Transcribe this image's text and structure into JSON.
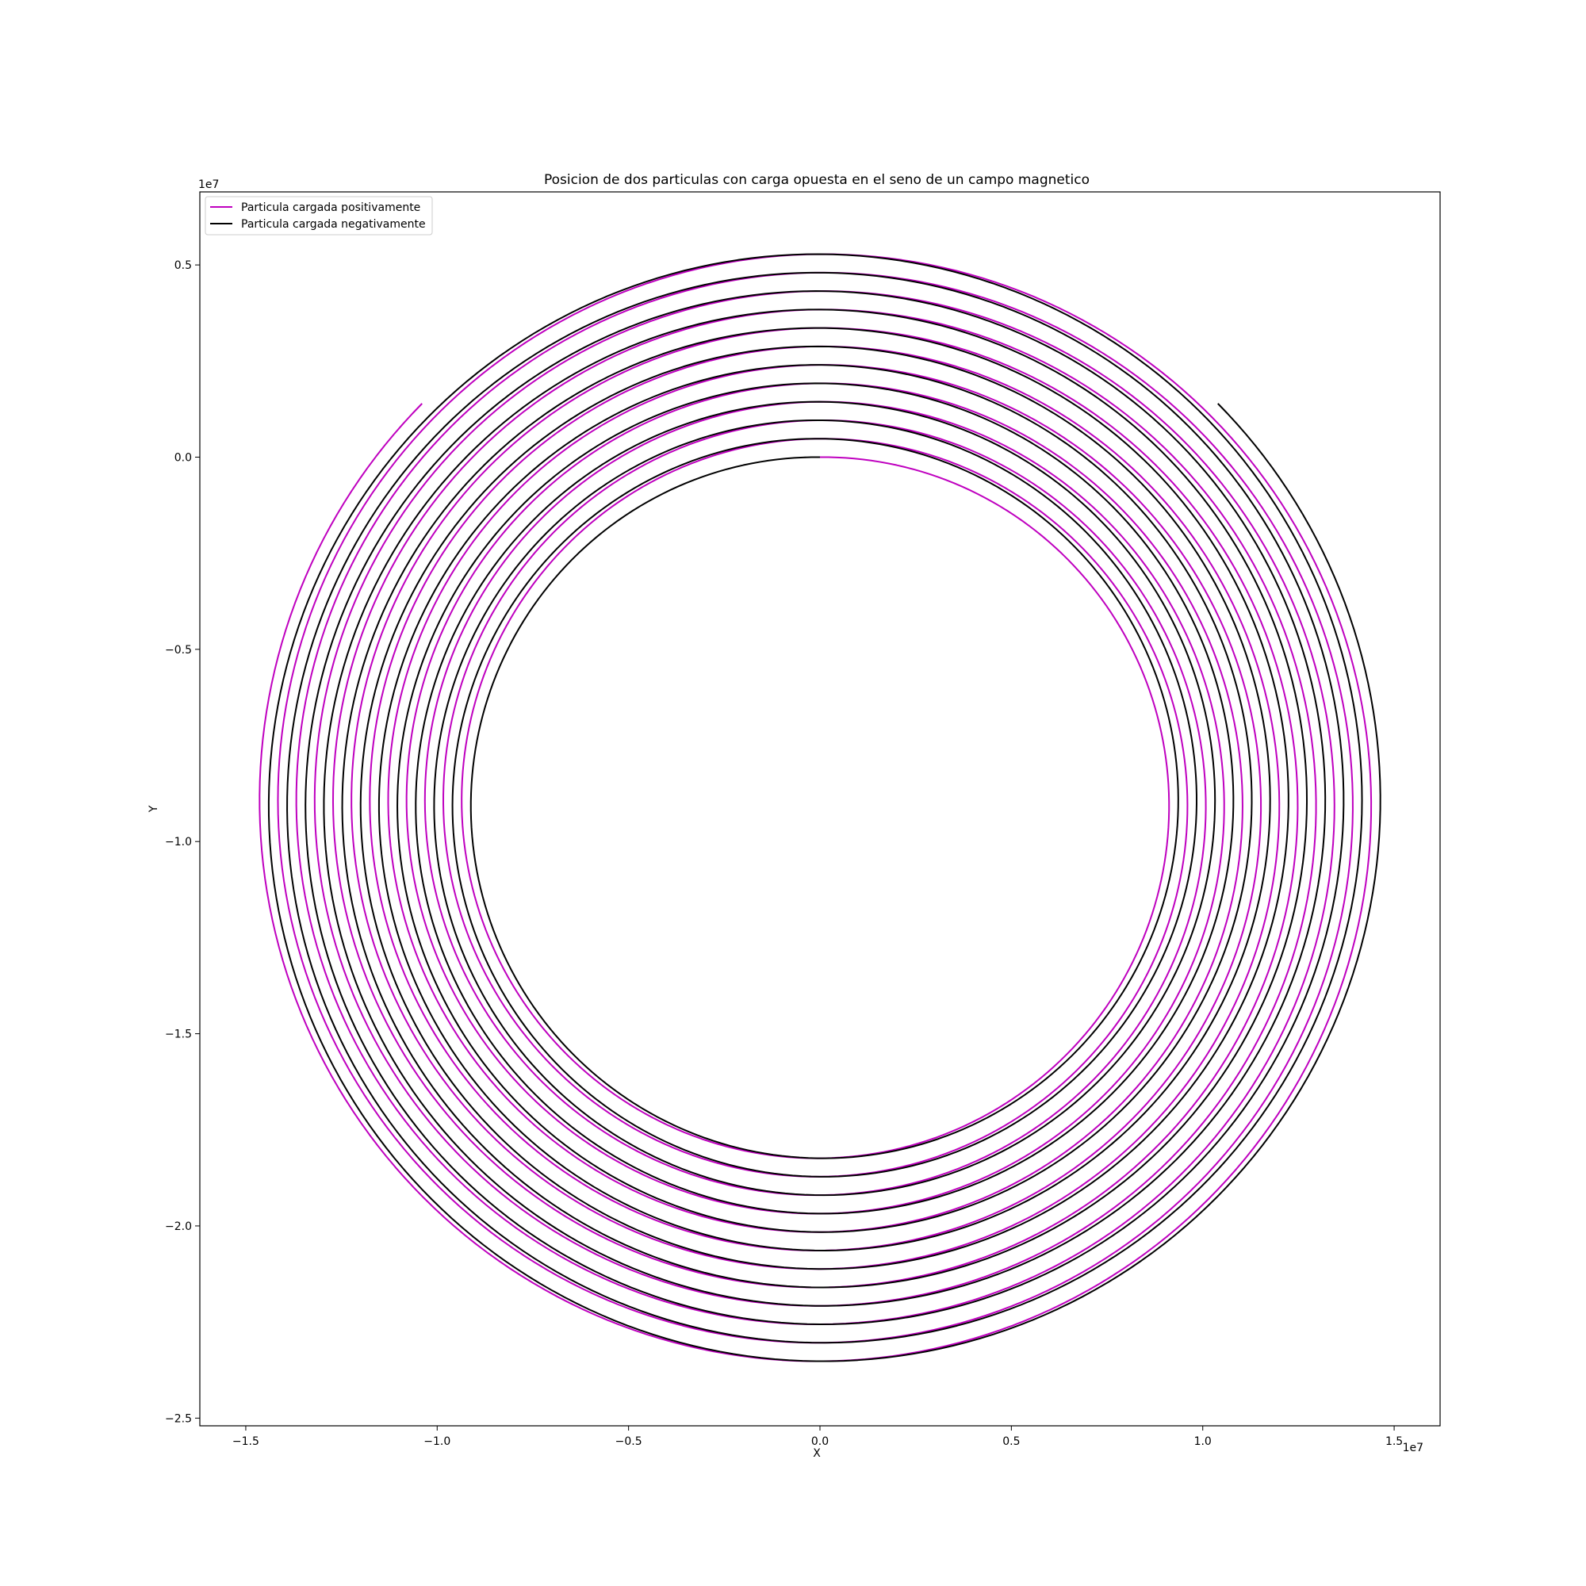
{
  "chart_data": {
    "type": "line",
    "title": "Posicion de dos particulas con carga opuesta en el seno de un campo magnetico",
    "xlabel": "X",
    "ylabel": "Y",
    "x_scale_label": "1e7",
    "y_scale_label": "1e7",
    "xlim": [
      -1.62,
      1.62
    ],
    "ylim": [
      -2.52,
      0.69
    ],
    "xticks": [
      -1.5,
      -1.0,
      -0.5,
      0.0,
      0.5,
      1.0,
      1.5
    ],
    "xtick_labels": [
      "−1.5",
      "−1.0",
      "−0.5",
      "0.0",
      "0.5",
      "1.0",
      "1.5"
    ],
    "yticks": [
      0.5,
      0.0,
      -0.5,
      -1.0,
      -1.5,
      -2.0,
      -2.5
    ],
    "ytick_labels": [
      "0.5",
      "0.0",
      "−0.5",
      "−1.0",
      "−1.5",
      "−2.0",
      "−2.5"
    ],
    "grid": false,
    "legend_position": "upper-left",
    "center": [
      0.0,
      -0.9
    ],
    "series": [
      {
        "name": "Particula cargada positivamente",
        "color": "#bf00bf",
        "direction": "clockwise",
        "start": [
          0.0,
          0.0
        ],
        "end": [
          -0.77,
          0.366
        ],
        "turns": 11.875,
        "start_radius": 0.9,
        "end_radius": 1.47
      },
      {
        "name": "Particula cargada negativamente",
        "color": "#000000",
        "direction": "counterclockwise",
        "start": [
          0.0,
          0.0
        ],
        "end": [
          0.77,
          0.366
        ],
        "turns": 11.875,
        "start_radius": 0.9,
        "end_radius": 1.47
      }
    ]
  }
}
